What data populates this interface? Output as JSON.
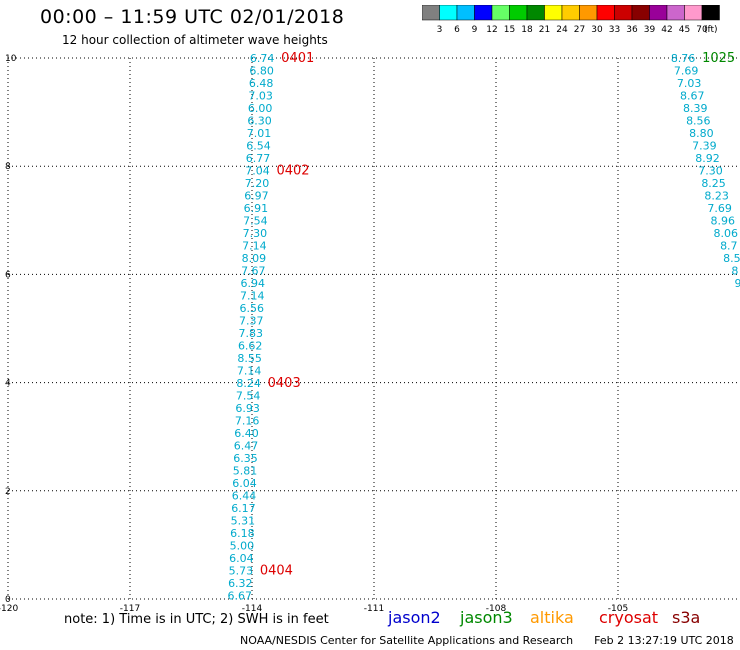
{
  "header": {
    "title": "00:00 – 11:59 UTC 02/01/2018",
    "subtitle": "12 hour collection of altimeter wave heights"
  },
  "colorbar": {
    "ticks": [
      "3",
      "6",
      "9",
      "12",
      "15",
      "18",
      "21",
      "24",
      "27",
      "30",
      "33",
      "36",
      "39",
      "42",
      "45",
      "70"
    ],
    "unit": "(ft)",
    "colors": [
      "#808080",
      "#00ffff",
      "#00bfff",
      "#0000ff",
      "#66ff66",
      "#00cc00",
      "#008800",
      "#ffff00",
      "#ffcc00",
      "#ff9900",
      "#ff0000",
      "#cc0000",
      "#880000",
      "#990099",
      "#cc66cc",
      "#ff99cc",
      "#000000"
    ]
  },
  "chart_data": {
    "type": "scatter",
    "title": "12 hour collection of altimeter wave heights",
    "xlim": [
      -120,
      -102
    ],
    "ylim": [
      0,
      10
    ],
    "x_ticks": [
      "-120",
      "-117",
      "-114",
      "-111",
      "-108",
      "-105"
    ],
    "y_ticks": [
      "0",
      "2",
      "4",
      "6",
      "8",
      "10"
    ],
    "grid": true,
    "value_color": "#00aacc",
    "time_color": "#dd0000",
    "pass_a": {
      "x_top": -113.75,
      "x_bottom": -114.3,
      "values": [
        "6.74",
        "6.80",
        "6.48",
        "7.03",
        "6.00",
        "6.30",
        "7.01",
        "6.54",
        "6.77",
        "7.04",
        "7.20",
        "6.97",
        "6.91",
        "7.54",
        "7.30",
        "7.14",
        "8.09",
        "7.67",
        "6.94",
        "7.14",
        "6.56",
        "7.37",
        "7.83",
        "6.62",
        "8.55",
        "7.14",
        "8.24",
        "7.54",
        "6.93",
        "7.16",
        "6.40",
        "6.47",
        "6.35",
        "5.81",
        "6.04",
        "6.44",
        "6.17",
        "5.31",
        "6.18",
        "5.00",
        "6.04",
        "5.73",
        "6.32",
        "6.67"
      ],
      "time_labels": [
        {
          "label": "0401",
          "index": 0
        },
        {
          "label": "0402",
          "index": 9
        },
        {
          "label": "0403",
          "index": 26
        },
        {
          "label": "0404",
          "index": 41
        }
      ]
    },
    "pass_b": {
      "x_top": -103.4,
      "x_bottom": -102.05,
      "values": [
        "8.76",
        "7.69",
        "7.03",
        "8.67",
        "8.39",
        "8.56",
        "8.80",
        "7.39",
        "8.92",
        "7.30",
        "8.25",
        "8.23",
        "7.69",
        "8.96",
        "8.06",
        "8.7",
        "8.5",
        "8",
        "9"
      ],
      "time_labels": [
        {
          "label": "1025",
          "index": 0,
          "color": "#008800"
        }
      ]
    }
  },
  "note": "note:  1) Time is in UTC;  2) SWH is in feet",
  "satellites": [
    {
      "name": "jason2",
      "color": "#0000cc"
    },
    {
      "name": "jason3",
      "color": "#008800"
    },
    {
      "name": "altika",
      "color": "#ff9900"
    },
    {
      "name": "cryosat",
      "color": "#dd0000"
    },
    {
      "name": "s3a",
      "color": "#880000"
    }
  ],
  "footer": {
    "org": "NOAA/NESDIS Center for Satellite Applications and Research",
    "timestamp": "Feb  2 13:27:19 UTC 2018"
  }
}
